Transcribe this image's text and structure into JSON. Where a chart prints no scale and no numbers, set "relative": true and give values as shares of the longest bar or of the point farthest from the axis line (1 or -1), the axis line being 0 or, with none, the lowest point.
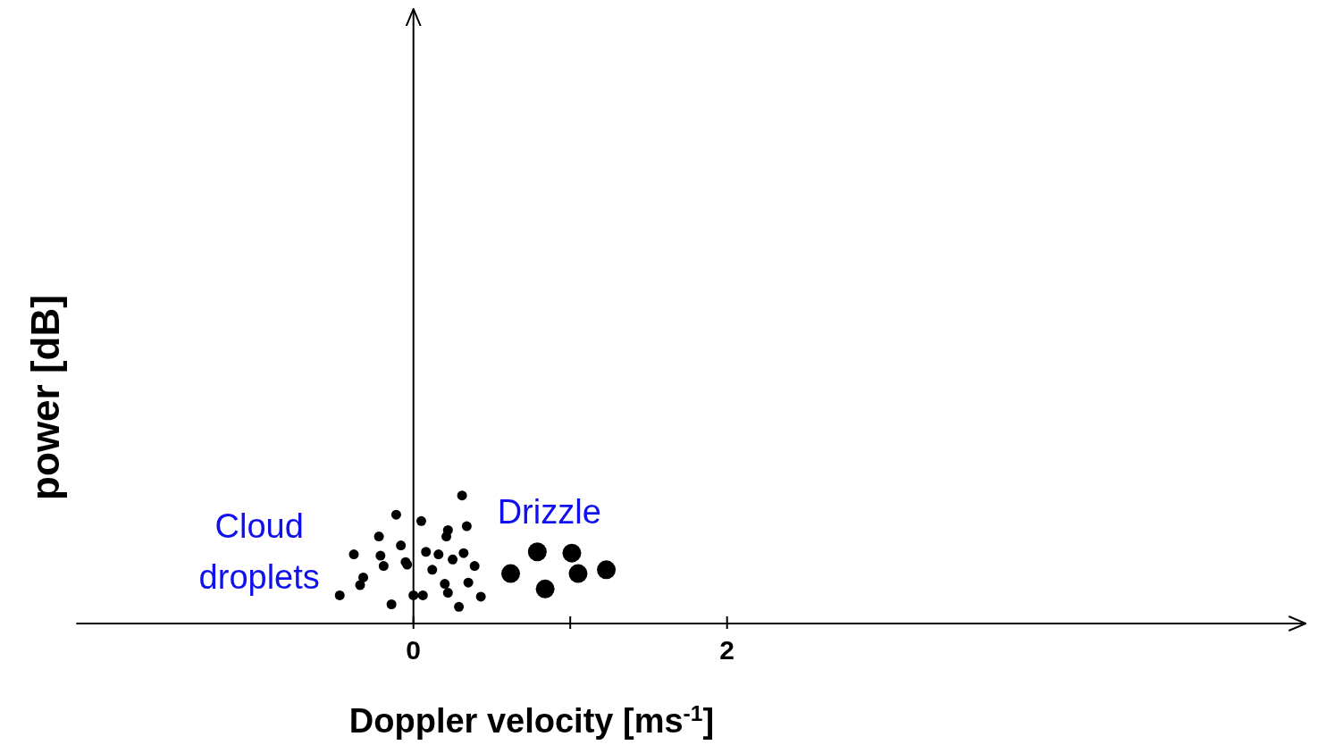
{
  "chart_data": {
    "type": "scatter",
    "relative": true,
    "xlabel": "Doppler velocity [ms$^{-1}$]",
    "ylabel": "power [dB]",
    "xlim": [
      -2.15,
      5.69
    ],
    "xticks": [
      0,
      {
        "value": 1,
        "label": null
      },
      2
    ],
    "legend": false,
    "marker": "circle",
    "series": [
      {
        "name": "Cloud droplets",
        "color": "#000000",
        "x": [
          -0.47,
          -0.38,
          -0.34,
          -0.32,
          -0.22,
          -0.21,
          -0.19,
          -0.14,
          -0.11,
          -0.08,
          -0.05,
          -0.04,
          0.0,
          0.05,
          0.06,
          0.08,
          0.12,
          0.16,
          0.2,
          0.21,
          0.22,
          0.22,
          0.25,
          0.29,
          0.31,
          0.32,
          0.34,
          0.35,
          0.39,
          0.43
        ],
        "values": [
          0.22,
          0.54,
          0.3,
          0.36,
          0.68,
          0.53,
          0.45,
          0.15,
          0.85,
          0.61,
          0.48,
          0.46,
          0.22,
          0.8,
          0.22,
          0.56,
          0.42,
          0.54,
          0.31,
          0.68,
          0.73,
          0.24,
          0.5,
          0.13,
          1.0,
          0.55,
          0.76,
          0.32,
          0.45,
          0.21
        ]
      },
      {
        "name": "Drizzle",
        "color": "#000000",
        "x": [
          0.62,
          0.79,
          0.84,
          1.01,
          1.05,
          1.23
        ],
        "values": [
          0.39,
          0.56,
          0.27,
          0.55,
          0.39,
          0.42
        ]
      }
    ]
  }
}
